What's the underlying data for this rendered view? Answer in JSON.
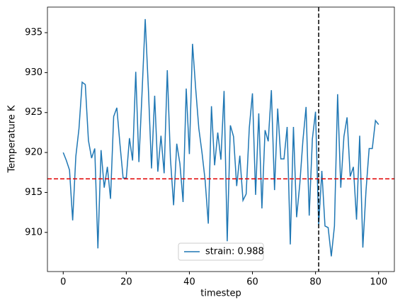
{
  "chart_data": {
    "type": "line",
    "xlabel": "timestep",
    "ylabel": "Temperature K",
    "x": [
      0,
      1,
      2,
      3,
      4,
      5,
      6,
      7,
      8,
      9,
      10,
      11,
      12,
      13,
      14,
      15,
      16,
      17,
      18,
      19,
      20,
      21,
      22,
      23,
      24,
      25,
      26,
      27,
      28,
      29,
      30,
      31,
      32,
      33,
      34,
      35,
      36,
      37,
      38,
      39,
      40,
      41,
      42,
      43,
      44,
      45,
      46,
      47,
      48,
      49,
      50,
      51,
      52,
      53,
      54,
      55,
      56,
      57,
      58,
      59,
      60,
      61,
      62,
      63,
      64,
      65,
      66,
      67,
      68,
      69,
      70,
      71,
      72,
      73,
      74,
      75,
      76,
      77,
      78,
      79,
      80,
      81,
      82,
      83,
      84,
      85,
      86,
      87,
      88,
      89,
      90,
      91,
      92,
      93,
      94,
      95,
      96,
      97,
      98,
      99,
      100
    ],
    "series": [
      {
        "name": "strain: 0.988",
        "color": "#1f77b4",
        "values": [
          920,
          919,
          917.8,
          911.5,
          919.5,
          923,
          928.8,
          928.5,
          921.5,
          919.3,
          920.5,
          908,
          920.3,
          915.6,
          918.2,
          914.2,
          924.5,
          925.6,
          921,
          916.8,
          916.8,
          921.8,
          919,
          930.1,
          918.8,
          927.5,
          936.7,
          928,
          918,
          927.1,
          917.6,
          922.1,
          917.4,
          930.3,
          919.2,
          913.4,
          921.1,
          918.6,
          913.8,
          928,
          919.8,
          933.6,
          928,
          923,
          920,
          916.5,
          911.1,
          925.8,
          918.4,
          922.5,
          919.1,
          927.7,
          908.9,
          923.4,
          922,
          915.8,
          919.6,
          914,
          914.8,
          923.1,
          927.4,
          914.7,
          924.9,
          913,
          922.8,
          921.4,
          927.8,
          915.3,
          925.5,
          919.2,
          919.2,
          923.2,
          908.5,
          923.2,
          911.9,
          916,
          921.5,
          925.7,
          912.1,
          921.7,
          925.1,
          910.9,
          917.7,
          910.8,
          910.6,
          907,
          910.8,
          927.3,
          915.6,
          922,
          924.4,
          917,
          918.2,
          911.6,
          922.1,
          908.1,
          915.2,
          920.5,
          920.5,
          924,
          923.5
        ]
      }
    ],
    "xlim": [
      -5,
      105
    ],
    "ylim": [
      905.1,
      938.2
    ],
    "xticks": [
      0,
      20,
      40,
      60,
      80,
      100
    ],
    "yticks": [
      910,
      915,
      920,
      925,
      930,
      935
    ],
    "hline": {
      "value": 916.7,
      "color": "#e00000"
    },
    "vline": {
      "value": 81,
      "color": "#000000"
    },
    "legend": "lower center"
  }
}
